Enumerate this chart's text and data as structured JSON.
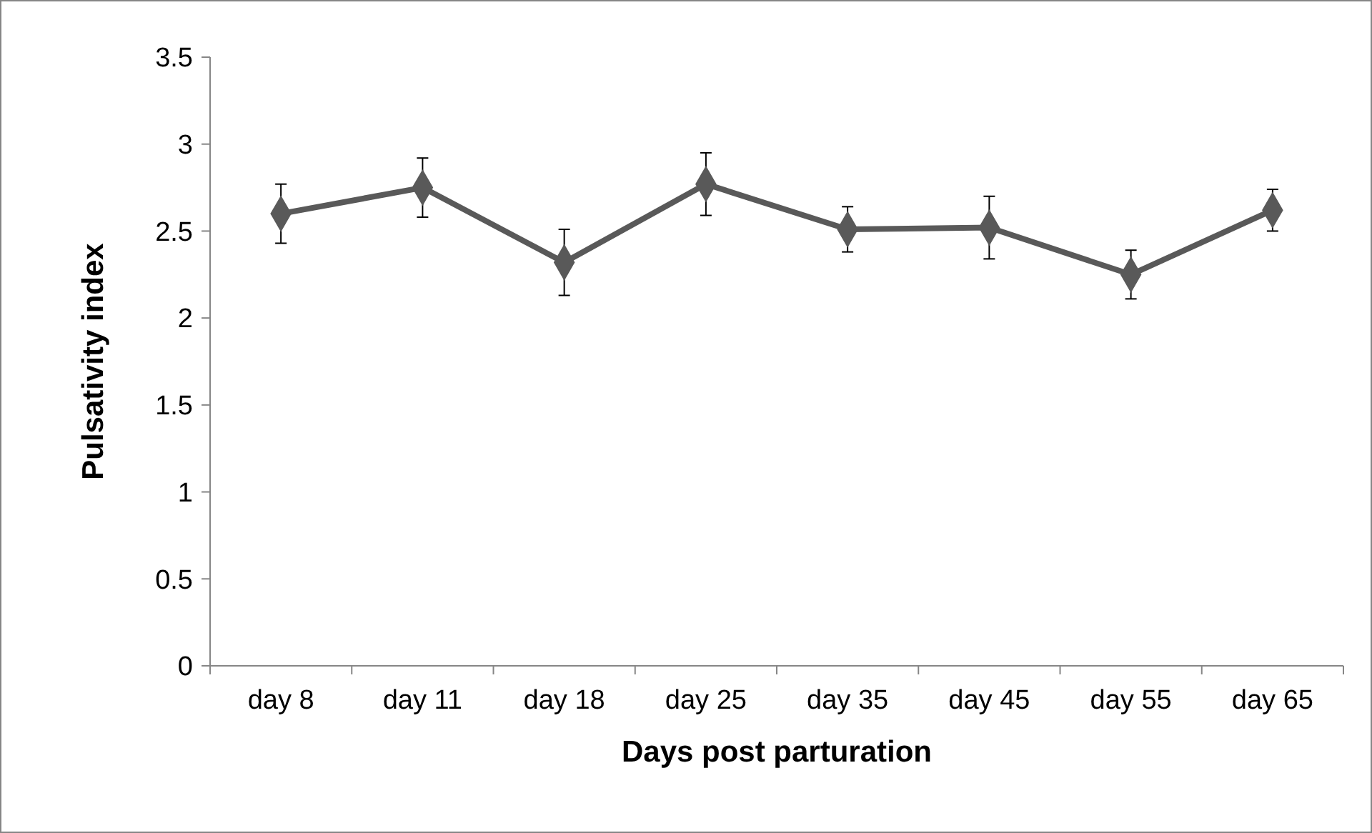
{
  "chart_data": {
    "type": "line",
    "xlabel": "Days post parturation",
    "ylabel": "Pulsativity index",
    "categories": [
      "day 8",
      "day 11",
      "day 18",
      "day 25",
      "day 35",
      "day 45",
      "day 55",
      "day 65"
    ],
    "series": [
      {
        "color": "#595959",
        "values": [
          2.6,
          2.75,
          2.32,
          2.77,
          2.51,
          2.52,
          2.25,
          2.62
        ],
        "errors": [
          0.17,
          0.17,
          0.19,
          0.18,
          0.13,
          0.18,
          0.14,
          0.12
        ]
      }
    ],
    "ylim": [
      0,
      3.5
    ],
    "yticks": [
      0,
      0.5,
      1,
      1.5,
      2,
      2.5,
      3,
      3.5
    ],
    "grid": false,
    "marker": "diamond",
    "line_style": "solid"
  }
}
